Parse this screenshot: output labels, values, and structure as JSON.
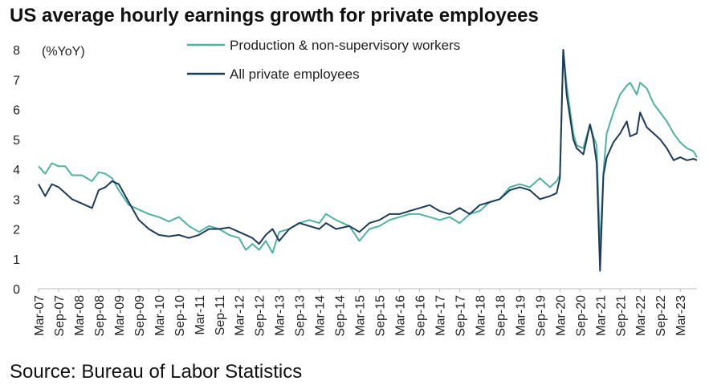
{
  "title": "US average hourly earnings growth for private employees",
  "source": "Source: Bureau of Labor Statistics",
  "chart_data": {
    "type": "line",
    "title": "US average hourly earnings growth for private employees",
    "unit_label": "(%YoY)",
    "ylim": [
      0,
      8
    ],
    "y_ticks": [
      0,
      1,
      2,
      3,
      4,
      5,
      6,
      7,
      8
    ],
    "x_range": [
      "2007-03",
      "2023-08"
    ],
    "x_ticks": [
      "Mar-07",
      "Sep-07",
      "Mar-08",
      "Sep-08",
      "Mar-09",
      "Sep-09",
      "Mar-10",
      "Sep-10",
      "Mar-11",
      "Sep-11",
      "Mar-12",
      "Sep-12",
      "Mar-13",
      "Sep-13",
      "Mar-14",
      "Sep-14",
      "Mar-15",
      "Sep-15",
      "Mar-16",
      "Sep-16",
      "Mar-17",
      "Sep-17",
      "Mar-18",
      "Sep-18",
      "Mar-19",
      "Sep-19",
      "Mar-20",
      "Sep-20",
      "Mar-21",
      "Sep-21",
      "Mar-22",
      "Sep-22",
      "Mar-23"
    ],
    "grid": false,
    "legend_position": "top-center",
    "series": [
      {
        "name": "Production & non-supervisory workers",
        "color": "#4db3a0",
        "points": [
          [
            "2007-03",
            4.1
          ],
          [
            "2007-05",
            3.85
          ],
          [
            "2007-07",
            4.2
          ],
          [
            "2007-09",
            4.1
          ],
          [
            "2007-11",
            4.1
          ],
          [
            "2008-01",
            3.8
          ],
          [
            "2008-04",
            3.8
          ],
          [
            "2008-07",
            3.6
          ],
          [
            "2008-09",
            3.9
          ],
          [
            "2008-11",
            3.85
          ],
          [
            "2009-01",
            3.7
          ],
          [
            "2009-03",
            3.3
          ],
          [
            "2009-06",
            2.8
          ],
          [
            "2009-09",
            2.65
          ],
          [
            "2009-12",
            2.5
          ],
          [
            "2010-03",
            2.4
          ],
          [
            "2010-06",
            2.25
          ],
          [
            "2010-09",
            2.4
          ],
          [
            "2010-12",
            2.1
          ],
          [
            "2011-03",
            1.9
          ],
          [
            "2011-06",
            2.1
          ],
          [
            "2011-09",
            2.0
          ],
          [
            "2011-12",
            1.8
          ],
          [
            "2012-03",
            1.7
          ],
          [
            "2012-05",
            1.3
          ],
          [
            "2012-07",
            1.5
          ],
          [
            "2012-09",
            1.3
          ],
          [
            "2012-11",
            1.6
          ],
          [
            "2013-01",
            1.2
          ],
          [
            "2013-03",
            1.9
          ],
          [
            "2013-06",
            2.0
          ],
          [
            "2013-09",
            2.2
          ],
          [
            "2013-12",
            2.3
          ],
          [
            "2014-03",
            2.2
          ],
          [
            "2014-05",
            2.5
          ],
          [
            "2014-08",
            2.3
          ],
          [
            "2014-12",
            2.1
          ],
          [
            "2015-03",
            1.6
          ],
          [
            "2015-06",
            2.0
          ],
          [
            "2015-09",
            2.1
          ],
          [
            "2015-12",
            2.3
          ],
          [
            "2016-03",
            2.4
          ],
          [
            "2016-06",
            2.5
          ],
          [
            "2016-09",
            2.5
          ],
          [
            "2016-12",
            2.4
          ],
          [
            "2017-03",
            2.3
          ],
          [
            "2017-06",
            2.4
          ],
          [
            "2017-09",
            2.2
          ],
          [
            "2017-12",
            2.5
          ],
          [
            "2018-03",
            2.6
          ],
          [
            "2018-06",
            2.9
          ],
          [
            "2018-09",
            3.0
          ],
          [
            "2018-12",
            3.4
          ],
          [
            "2019-03",
            3.5
          ],
          [
            "2019-06",
            3.4
          ],
          [
            "2019-09",
            3.7
          ],
          [
            "2019-12",
            3.4
          ],
          [
            "2020-02",
            3.6
          ],
          [
            "2020-03",
            3.8
          ],
          [
            "2020-04",
            8.0
          ],
          [
            "2020-05",
            6.8
          ],
          [
            "2020-07",
            5.2
          ],
          [
            "2020-08",
            4.8
          ],
          [
            "2020-10",
            4.7
          ],
          [
            "2020-12",
            5.5
          ],
          [
            "2021-01",
            5.1
          ],
          [
            "2021-02",
            4.8
          ],
          [
            "2021-03",
            1.3
          ],
          [
            "2021-04",
            3.9
          ],
          [
            "2021-05",
            5.2
          ],
          [
            "2021-07",
            5.9
          ],
          [
            "2021-09",
            6.5
          ],
          [
            "2021-11",
            6.8
          ],
          [
            "2021-12",
            6.9
          ],
          [
            "2022-02",
            6.5
          ],
          [
            "2022-03",
            6.9
          ],
          [
            "2022-05",
            6.7
          ],
          [
            "2022-07",
            6.2
          ],
          [
            "2022-09",
            5.9
          ],
          [
            "2022-11",
            5.6
          ],
          [
            "2023-01",
            5.2
          ],
          [
            "2023-03",
            4.9
          ],
          [
            "2023-05",
            4.7
          ],
          [
            "2023-07",
            4.6
          ],
          [
            "2023-08",
            4.4
          ]
        ]
      },
      {
        "name": "All private employees",
        "color": "#1c3a5e",
        "points": [
          [
            "2007-03",
            3.5
          ],
          [
            "2007-05",
            3.1
          ],
          [
            "2007-07",
            3.5
          ],
          [
            "2007-09",
            3.4
          ],
          [
            "2007-11",
            3.2
          ],
          [
            "2008-01",
            3.0
          ],
          [
            "2008-04",
            2.85
          ],
          [
            "2008-07",
            2.7
          ],
          [
            "2008-09",
            3.3
          ],
          [
            "2008-11",
            3.4
          ],
          [
            "2009-01",
            3.6
          ],
          [
            "2009-03",
            3.5
          ],
          [
            "2009-06",
            2.9
          ],
          [
            "2009-09",
            2.3
          ],
          [
            "2009-12",
            2.0
          ],
          [
            "2010-03",
            1.8
          ],
          [
            "2010-06",
            1.75
          ],
          [
            "2010-09",
            1.8
          ],
          [
            "2010-12",
            1.7
          ],
          [
            "2011-03",
            1.8
          ],
          [
            "2011-06",
            2.0
          ],
          [
            "2011-09",
            2.0
          ],
          [
            "2011-12",
            2.05
          ],
          [
            "2012-03",
            1.9
          ],
          [
            "2012-05",
            1.8
          ],
          [
            "2012-07",
            1.7
          ],
          [
            "2012-09",
            1.5
          ],
          [
            "2012-11",
            1.8
          ],
          [
            "2013-01",
            2.0
          ],
          [
            "2013-03",
            1.6
          ],
          [
            "2013-06",
            2.0
          ],
          [
            "2013-09",
            2.2
          ],
          [
            "2013-12",
            2.1
          ],
          [
            "2014-03",
            2.0
          ],
          [
            "2014-05",
            2.2
          ],
          [
            "2014-08",
            2.0
          ],
          [
            "2014-12",
            2.1
          ],
          [
            "2015-03",
            1.9
          ],
          [
            "2015-06",
            2.2
          ],
          [
            "2015-09",
            2.3
          ],
          [
            "2015-12",
            2.5
          ],
          [
            "2016-03",
            2.5
          ],
          [
            "2016-06",
            2.6
          ],
          [
            "2016-09",
            2.7
          ],
          [
            "2016-12",
            2.8
          ],
          [
            "2017-03",
            2.6
          ],
          [
            "2017-06",
            2.5
          ],
          [
            "2017-09",
            2.7
          ],
          [
            "2017-12",
            2.5
          ],
          [
            "2018-03",
            2.8
          ],
          [
            "2018-06",
            2.9
          ],
          [
            "2018-09",
            3.0
          ],
          [
            "2018-12",
            3.3
          ],
          [
            "2019-03",
            3.4
          ],
          [
            "2019-06",
            3.3
          ],
          [
            "2019-09",
            3.0
          ],
          [
            "2019-12",
            3.1
          ],
          [
            "2020-02",
            3.2
          ],
          [
            "2020-03",
            3.7
          ],
          [
            "2020-04",
            8.0
          ],
          [
            "2020-05",
            6.5
          ],
          [
            "2020-07",
            5.0
          ],
          [
            "2020-08",
            4.7
          ],
          [
            "2020-10",
            4.5
          ],
          [
            "2020-12",
            5.5
          ],
          [
            "2021-01",
            5.0
          ],
          [
            "2021-02",
            4.2
          ],
          [
            "2021-03",
            0.6
          ],
          [
            "2021-04",
            3.8
          ],
          [
            "2021-05",
            4.4
          ],
          [
            "2021-07",
            4.9
          ],
          [
            "2021-09",
            5.2
          ],
          [
            "2021-11",
            5.6
          ],
          [
            "2021-12",
            5.1
          ],
          [
            "2022-02",
            5.2
          ],
          [
            "2022-03",
            5.9
          ],
          [
            "2022-05",
            5.4
          ],
          [
            "2022-07",
            5.2
          ],
          [
            "2022-09",
            5.0
          ],
          [
            "2022-11",
            4.7
          ],
          [
            "2023-01",
            4.3
          ],
          [
            "2023-03",
            4.4
          ],
          [
            "2023-05",
            4.3
          ],
          [
            "2023-07",
            4.35
          ],
          [
            "2023-08",
            4.3
          ]
        ]
      }
    ]
  }
}
